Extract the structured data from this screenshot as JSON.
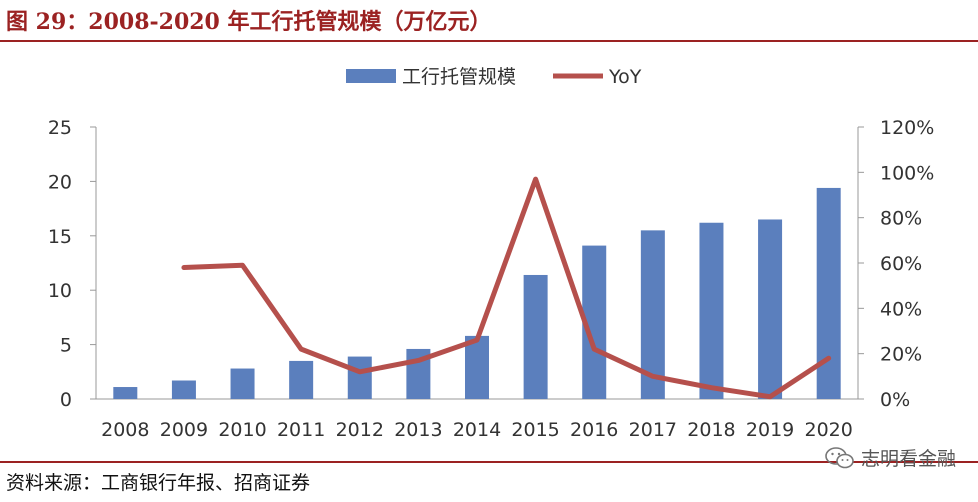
{
  "title": "图 29：2008-2020 年工行托管规模（万亿元）",
  "source": "资料来源：工商银行年报、招商证券",
  "watermark": "志明看金融",
  "colors": {
    "bar": "#5b7fbd",
    "line": "#b5504c",
    "accent": "#9b2222"
  },
  "chart_data": {
    "type": "bar",
    "categories": [
      "2008",
      "2009",
      "2010",
      "2011",
      "2012",
      "2013",
      "2014",
      "2015",
      "2016",
      "2017",
      "2018",
      "2019",
      "2020"
    ],
    "series": [
      {
        "name": "工行托管规模",
        "type": "bar",
        "axis": "left",
        "values": [
          1.1,
          1.7,
          2.8,
          3.5,
          3.9,
          4.6,
          5.8,
          11.4,
          14.1,
          15.5,
          16.2,
          16.5,
          19.4
        ]
      },
      {
        "name": "YoY",
        "type": "line",
        "axis": "right",
        "values": [
          null,
          58,
          59,
          22,
          12,
          17,
          26,
          97,
          22,
          10,
          5,
          1,
          18
        ]
      }
    ],
    "ylim_left": [
      0,
      25
    ],
    "yticks_left": [
      "0",
      "5",
      "10",
      "15",
      "20",
      "25"
    ],
    "ylim_right": [
      0,
      120
    ],
    "yticks_right": [
      "0%",
      "20%",
      "40%",
      "60%",
      "80%",
      "100%",
      "120%"
    ],
    "legend_position": "top",
    "grid": false
  }
}
